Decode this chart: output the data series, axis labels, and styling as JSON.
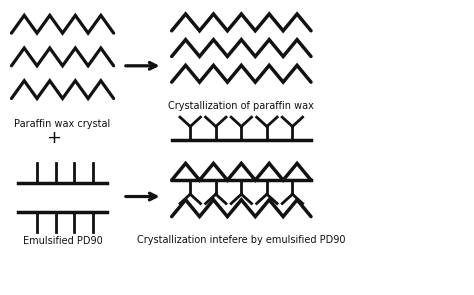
{
  "bg_color": "#ffffff",
  "line_color": "#111111",
  "lw": 2.0,
  "arrow_color": "#111111",
  "labels": {
    "paraffin": "Paraffin wax crystal",
    "emulsified": "Emulsified PD90",
    "crystallization_wax": "Crystallization of paraffin wax",
    "crystallization_interfere": "Crystallization intefere by emulsified PD90"
  },
  "label_fontsize": 7.0,
  "figsize": [
    4.74,
    2.95
  ],
  "dpi": 100
}
